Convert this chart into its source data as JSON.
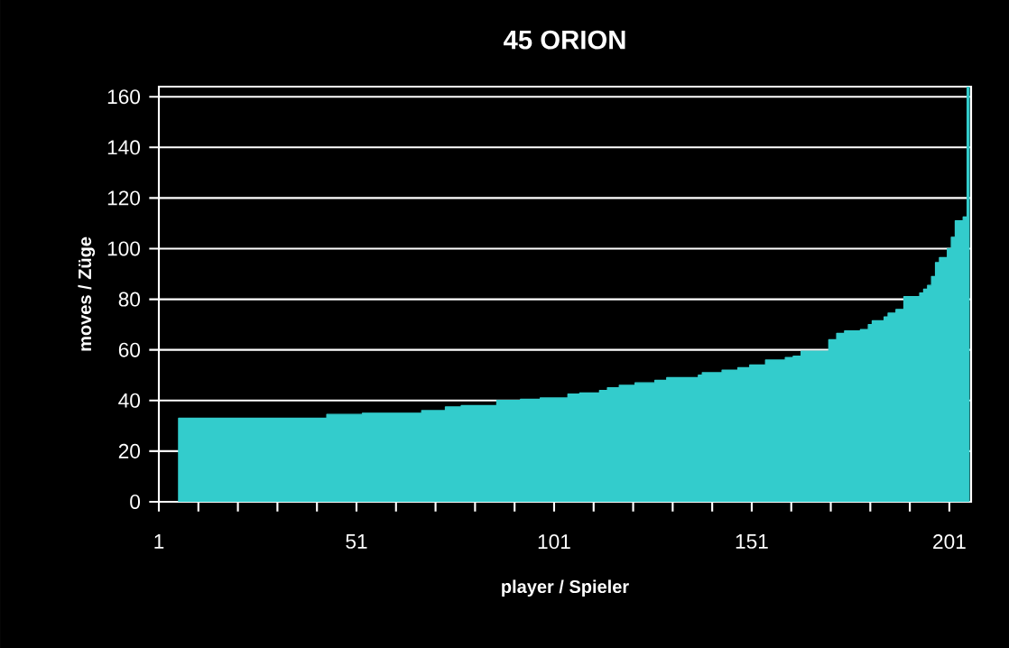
{
  "chart_data": {
    "type": "area",
    "title": "45 ORION",
    "xlabel": "player / Spieler",
    "ylabel": "moves / Züge",
    "color": "#33cccc",
    "grid": "y",
    "xlim": [
      1,
      206.5
    ],
    "ylim": [
      0,
      164
    ],
    "xticks": [
      1,
      {
        "value": 11,
        "label": null
      },
      {
        "value": 21,
        "label": null
      },
      {
        "value": 31,
        "label": null
      },
      {
        "value": 41,
        "label": null
      },
      51,
      {
        "value": 61,
        "label": null
      },
      {
        "value": 71,
        "label": null
      },
      {
        "value": 81,
        "label": null
      },
      {
        "value": 91,
        "label": null
      },
      101,
      {
        "value": 111,
        "label": null
      },
      {
        "value": 121,
        "label": null
      },
      {
        "value": 131,
        "label": null
      },
      {
        "value": 141,
        "label": null
      },
      151,
      {
        "value": 161,
        "label": null
      },
      {
        "value": 171,
        "label": null
      },
      {
        "value": 181,
        "label": null
      },
      {
        "value": 191,
        "label": null
      },
      201
    ],
    "yticks": [
      0,
      20,
      40,
      60,
      80,
      100,
      120,
      140,
      160
    ],
    "x": [
      6,
      7,
      8,
      9,
      10,
      11,
      12,
      13,
      14,
      15,
      16,
      17,
      18,
      19,
      20,
      21,
      22,
      23,
      24,
      25,
      26,
      27,
      28,
      29,
      30,
      31,
      32,
      33,
      34,
      35,
      36,
      37,
      38,
      39,
      40,
      41,
      42,
      43,
      44,
      45,
      46,
      47,
      48,
      49,
      50,
      51,
      52,
      53,
      54,
      55,
      56,
      57,
      58,
      59,
      60,
      61,
      62,
      63,
      64,
      65,
      66,
      67,
      68,
      69,
      70,
      71,
      72,
      73,
      74,
      75,
      76,
      77,
      78,
      79,
      80,
      81,
      82,
      83,
      84,
      85,
      86,
      87,
      88,
      89,
      90,
      91,
      92,
      93,
      94,
      95,
      96,
      97,
      98,
      99,
      100,
      101,
      102,
      103,
      104,
      105,
      106,
      107,
      108,
      109,
      110,
      111,
      112,
      113,
      114,
      115,
      116,
      117,
      118,
      119,
      120,
      121,
      122,
      123,
      124,
      125,
      126,
      127,
      128,
      129,
      130,
      131,
      132,
      133,
      134,
      135,
      136,
      137,
      138,
      139,
      140,
      141,
      142,
      143,
      144,
      145,
      146,
      147,
      148,
      149,
      150,
      151,
      152,
      153,
      154,
      155,
      156,
      157,
      158,
      159,
      160,
      161,
      162,
      163,
      164,
      165,
      166,
      167,
      168,
      169,
      170,
      171,
      172,
      173,
      174,
      175,
      176,
      177,
      178,
      179,
      180,
      181,
      182,
      183,
      184,
      185,
      186,
      187,
      188,
      189,
      190,
      191,
      192,
      193,
      194,
      195,
      196,
      197,
      198,
      199,
      200,
      201,
      202,
      203,
      204,
      205,
      206
    ],
    "values": [
      33,
      33,
      33,
      33,
      33,
      33,
      33,
      33,
      33,
      33,
      33,
      33,
      33,
      33,
      33,
      33,
      33,
      33,
      33,
      33,
      33,
      33,
      33,
      33,
      33,
      33,
      33,
      33,
      33,
      33,
      33,
      33,
      33,
      33,
      33,
      33,
      33,
      33,
      34.5,
      34.5,
      34.5,
      34.5,
      34.5,
      34.5,
      34.5,
      34.5,
      34.5,
      35,
      35,
      35,
      35,
      35,
      35,
      35,
      35,
      35,
      35,
      35,
      35,
      35,
      35,
      35,
      36,
      36,
      36,
      36,
      36,
      36,
      37.5,
      37.5,
      37.5,
      37.5,
      38,
      38,
      38,
      38,
      38,
      38,
      38,
      38,
      38,
      40,
      40,
      40,
      40,
      40,
      40,
      40.5,
      40.5,
      40.5,
      40.5,
      40.5,
      41,
      41,
      41,
      41,
      41,
      41,
      41,
      42.5,
      42.5,
      42.5,
      43,
      43,
      43,
      43,
      43,
      44,
      44,
      45,
      45,
      45,
      46,
      46,
      46,
      46,
      47,
      47,
      47,
      47,
      47,
      48,
      48,
      48,
      49,
      49,
      49,
      49,
      49,
      49,
      49,
      49,
      50,
      51,
      51,
      51,
      51,
      51,
      52,
      52,
      52,
      52,
      53,
      53,
      53,
      54,
      54,
      54,
      54,
      56,
      56,
      56,
      56,
      56,
      57,
      57,
      57.5,
      57.5,
      59.5,
      59.5,
      59.5,
      59.5,
      59.5,
      59.5,
      59.5,
      64,
      64,
      66.5,
      66.5,
      67.5,
      67.5,
      67.5,
      67.5,
      68,
      68,
      70,
      71.5,
      71.5,
      71.5,
      73,
      74.5,
      74.5,
      76,
      76,
      81,
      81,
      81,
      81,
      82.5,
      84,
      85.5,
      89,
      94.5,
      96.5,
      96.5,
      100,
      104.5,
      111,
      111,
      112.5,
      164
    ]
  }
}
